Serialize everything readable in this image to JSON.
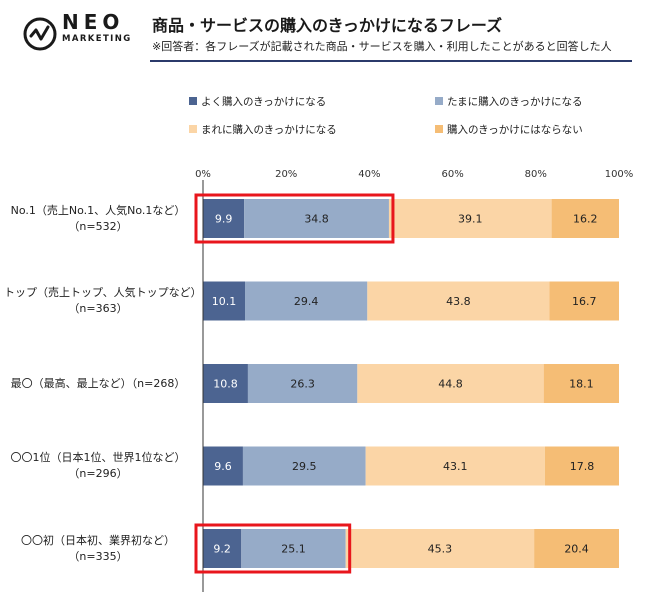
{
  "brand": {
    "name": "NEO",
    "sub": "MARKETING"
  },
  "header": {
    "title": "商品・サービスの購入のきっかけになるフレーズ",
    "subtitle": "※回答者：各フレーズが記載された商品・サービスを購入・利用したことがあると回答した人"
  },
  "colors": {
    "s1": "#4c6491",
    "s2": "#96abc8",
    "s3": "#fbd5a6",
    "s4": "#f5bd75",
    "highlight": "#e8161c",
    "rule": "#2b3a6b"
  },
  "chart_data": {
    "type": "bar",
    "orientation": "horizontal",
    "stacked": true,
    "x_ticks": [
      "0%",
      "20%",
      "40%",
      "60%",
      "80%",
      "100%"
    ],
    "xlim": [
      0,
      100
    ],
    "legend_position": "top",
    "categories": [
      {
        "label": "No.1（売上No.1、人気No.1など）",
        "n": "（n=532）"
      },
      {
        "label": "トップ（売上トップ、人気トップなど）",
        "n": "（n=363）"
      },
      {
        "label": "最〇（最高、最上など）（n=268）",
        "n": ""
      },
      {
        "label": "〇〇1位（日本1位、世界1位など）",
        "n": "（n=296）"
      },
      {
        "label": "〇〇初（日本初、業界初など）",
        "n": "（n=335）"
      }
    ],
    "series": [
      {
        "name": "よく購入のきっかけになる",
        "color": "#4c6491",
        "values": [
          9.9,
          10.1,
          10.8,
          9.6,
          9.2
        ]
      },
      {
        "name": "たまに購入のきっかけになる",
        "color": "#96abc8",
        "values": [
          34.8,
          29.4,
          26.3,
          29.5,
          25.1
        ]
      },
      {
        "name": "まれに購入のきっかけになる",
        "color": "#fbd5a6",
        "values": [
          39.1,
          43.8,
          44.8,
          43.1,
          45.3
        ]
      },
      {
        "name": "購入のきっかけにはならない",
        "color": "#f5bd75",
        "values": [
          16.2,
          16.7,
          18.1,
          17.8,
          20.4
        ]
      }
    ],
    "highlighted_rows": [
      0,
      4
    ]
  }
}
